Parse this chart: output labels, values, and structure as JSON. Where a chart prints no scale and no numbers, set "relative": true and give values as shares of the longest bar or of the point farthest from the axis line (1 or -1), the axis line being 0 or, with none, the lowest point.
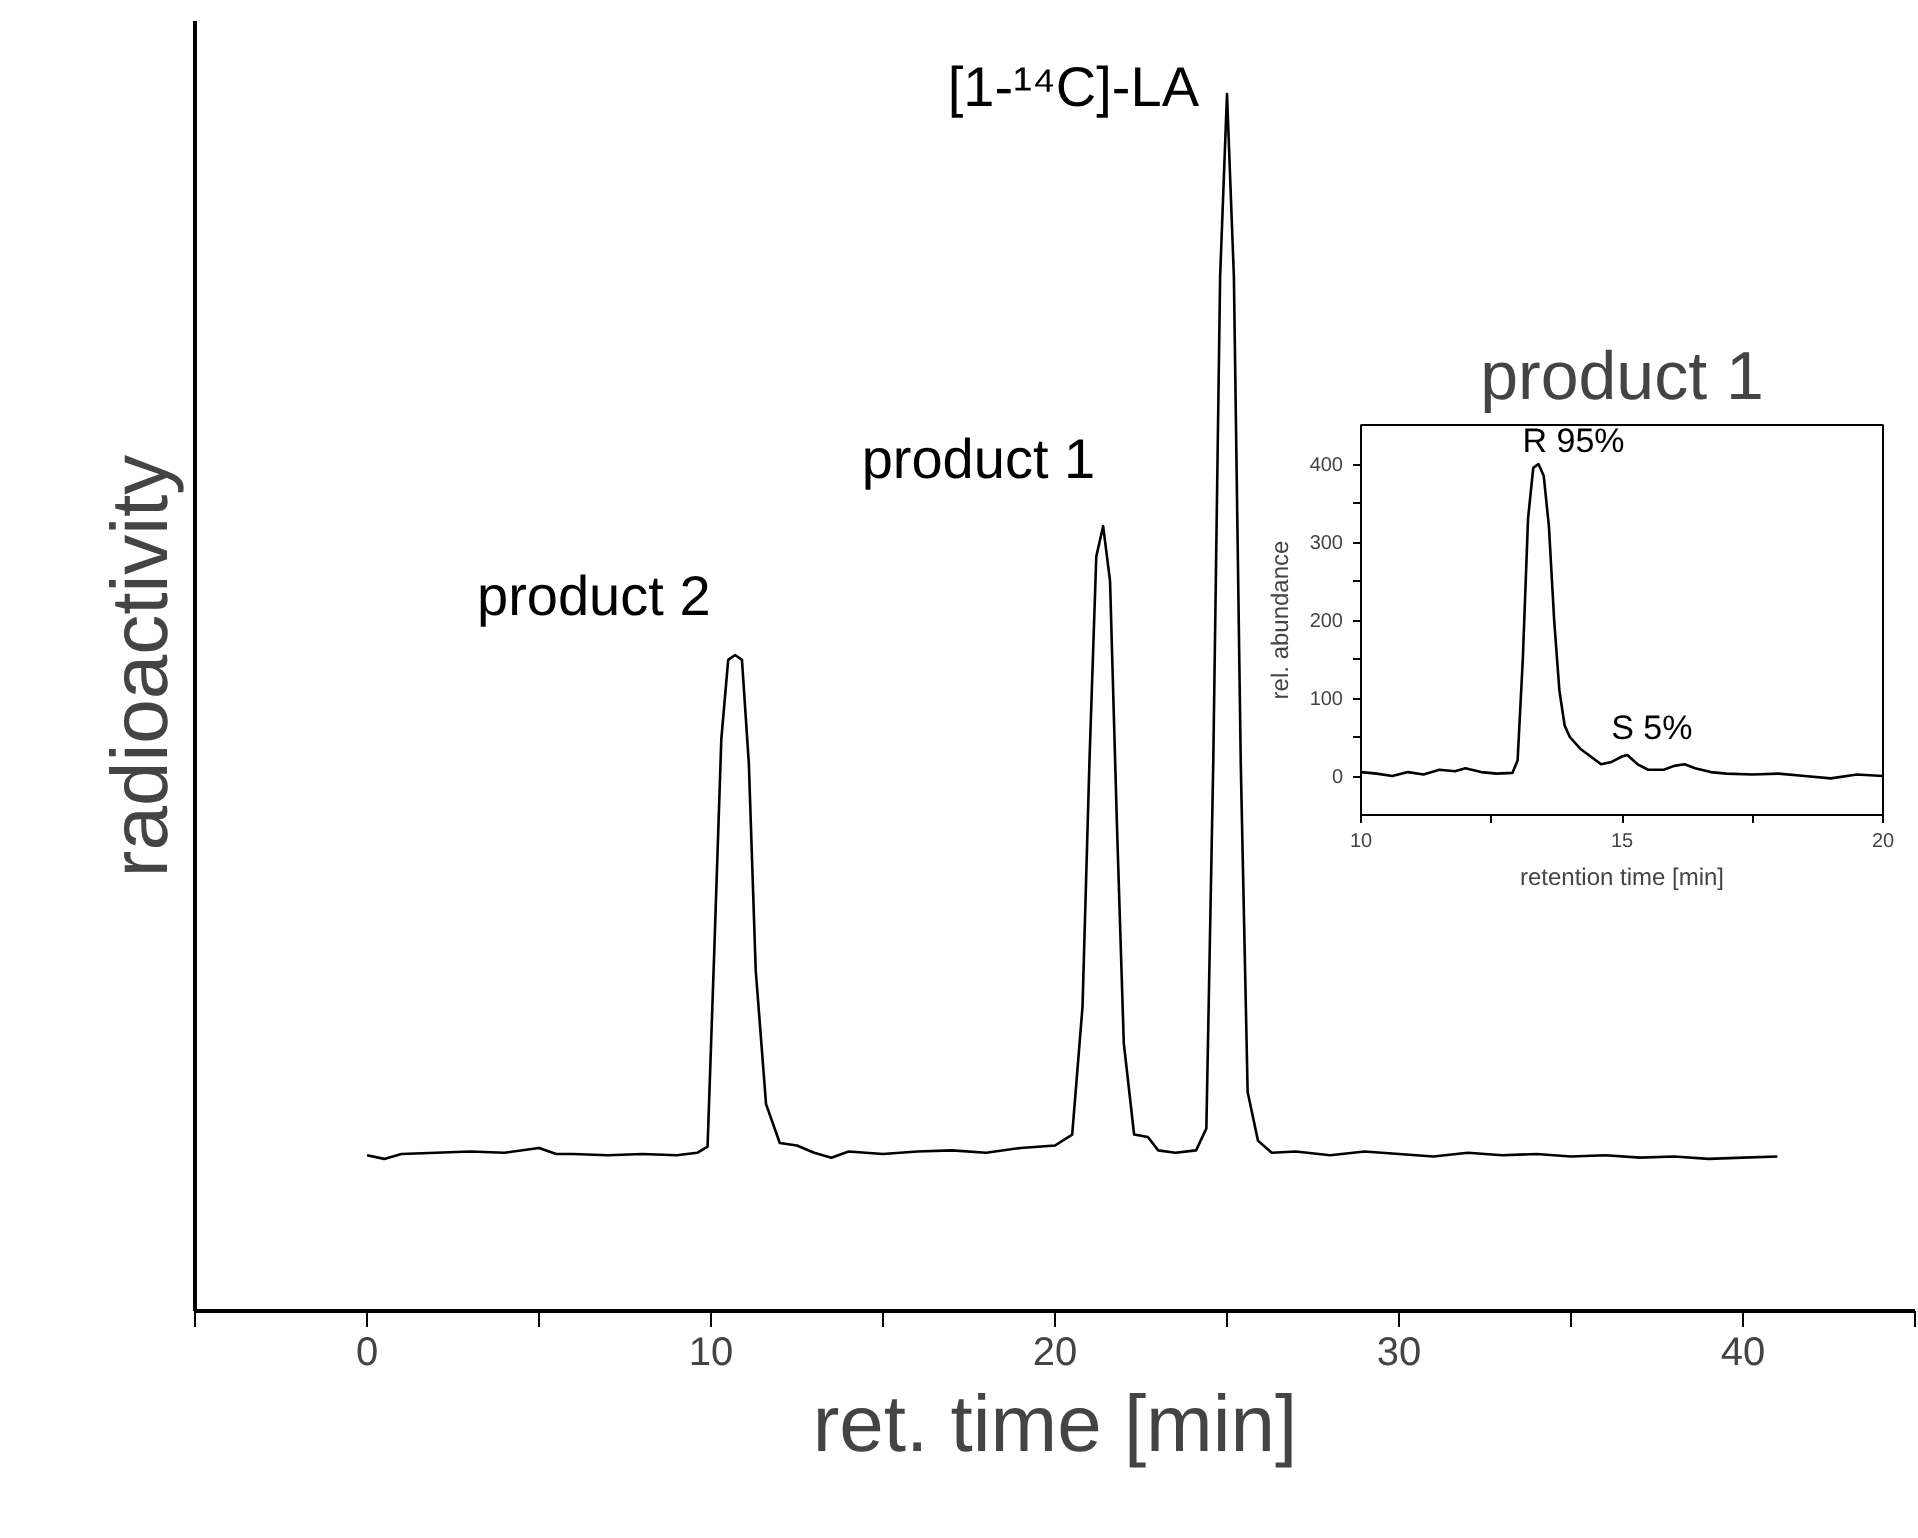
{
  "chart_data": [
    {
      "type": "line",
      "relative": true,
      "xlabel": "ret. time [min]",
      "ylabel": "radioactivity",
      "color": "#000000",
      "xlim": [
        -5,
        45
      ],
      "xticks": [
        {
          "value": -5,
          "label": null
        },
        0,
        {
          "value": 5,
          "label": null
        },
        10,
        {
          "value": 15,
          "label": null
        },
        20,
        {
          "value": 25,
          "label": null
        },
        30,
        {
          "value": 35,
          "label": null
        },
        40,
        {
          "value": 45,
          "label": null
        }
      ],
      "x": [
        0,
        0.5,
        1,
        2,
        3,
        4,
        5,
        5.5,
        6,
        7,
        8,
        9,
        9.6,
        9.9,
        10.1,
        10.3,
        10.5,
        10.7,
        10.9,
        11.1,
        11.3,
        11.6,
        12.0,
        12.5,
        13,
        13.5,
        14,
        15,
        16,
        17,
        18,
        19,
        20,
        20.5,
        20.8,
        21.0,
        21.2,
        21.4,
        21.6,
        21.8,
        22.0,
        22.3,
        22.7,
        23.0,
        23.5,
        24.1,
        24.4,
        24.6,
        24.8,
        25.0,
        25.2,
        25.4,
        25.6,
        25.9,
        26.3,
        27,
        28,
        29,
        30,
        31,
        32,
        33,
        34,
        35,
        36,
        37,
        38,
        39,
        40,
        41
      ],
      "values": [
        0.128,
        0.125,
        0.129,
        0.13,
        0.131,
        0.13,
        0.134,
        0.129,
        0.129,
        0.128,
        0.129,
        0.128,
        0.13,
        0.135,
        0.3,
        0.47,
        0.535,
        0.539,
        0.535,
        0.45,
        0.28,
        0.17,
        0.138,
        0.136,
        0.13,
        0.126,
        0.131,
        0.129,
        0.131,
        0.132,
        0.13,
        0.134,
        0.136,
        0.145,
        0.25,
        0.45,
        0.62,
        0.645,
        0.6,
        0.4,
        0.22,
        0.145,
        0.143,
        0.132,
        0.13,
        0.132,
        0.15,
        0.45,
        0.85,
        1.0,
        0.85,
        0.45,
        0.18,
        0.14,
        0.13,
        0.131,
        0.128,
        0.131,
        0.129,
        0.127,
        0.13,
        0.128,
        0.129,
        0.127,
        0.128,
        0.126,
        0.127,
        0.125,
        0.126,
        0.127
      ],
      "annotations": [
        {
          "text": "product 2",
          "x": 10.8,
          "y": 0.539
        },
        {
          "text": "product 1",
          "x": 21.4,
          "y": 0.645
        },
        {
          "text": "[1-¹⁴C]-LA",
          "x": 25.0,
          "y": 1.0
        }
      ]
    },
    {
      "type": "line",
      "title": "product 1",
      "xlabel": "retention time [min]",
      "ylabel": "rel. abundance",
      "color": "#000000",
      "xlim": [
        10,
        20
      ],
      "ylim": [
        -50,
        450
      ],
      "xticks": [
        10,
        {
          "value": 12.5,
          "label": null
        },
        15,
        {
          "value": 17.5,
          "label": null
        },
        20
      ],
      "yticks": [
        0,
        {
          "value": 50,
          "label": null
        },
        100,
        {
          "value": 150,
          "label": null
        },
        200,
        {
          "value": 250,
          "label": null
        },
        300,
        {
          "value": 350,
          "label": null
        },
        400
      ],
      "x": [
        10.0,
        10.3,
        10.6,
        10.9,
        11.2,
        11.5,
        11.8,
        12.0,
        12.3,
        12.6,
        12.9,
        13.0,
        13.1,
        13.2,
        13.3,
        13.4,
        13.5,
        13.6,
        13.7,
        13.8,
        13.9,
        14.0,
        14.2,
        14.4,
        14.6,
        14.8,
        15.0,
        15.1,
        15.3,
        15.5,
        15.8,
        16.0,
        16.2,
        16.4,
        16.7,
        17.0,
        17.5,
        18.0,
        18.5,
        19.0,
        19.5,
        20.0
      ],
      "values": [
        5,
        3,
        0,
        5,
        2,
        8,
        6,
        10,
        5,
        3,
        4,
        20,
        150,
        330,
        395,
        400,
        385,
        320,
        200,
        110,
        65,
        50,
        35,
        25,
        15,
        18,
        25,
        27,
        15,
        8,
        8,
        13,
        15,
        10,
        5,
        3,
        2,
        3,
        0,
        -3,
        2,
        0
      ],
      "annotations": [
        {
          "text": "R 95%",
          "x": 13.4,
          "y": 400
        },
        {
          "text": "S 5%",
          "x": 15.1,
          "y": 27
        }
      ]
    }
  ]
}
